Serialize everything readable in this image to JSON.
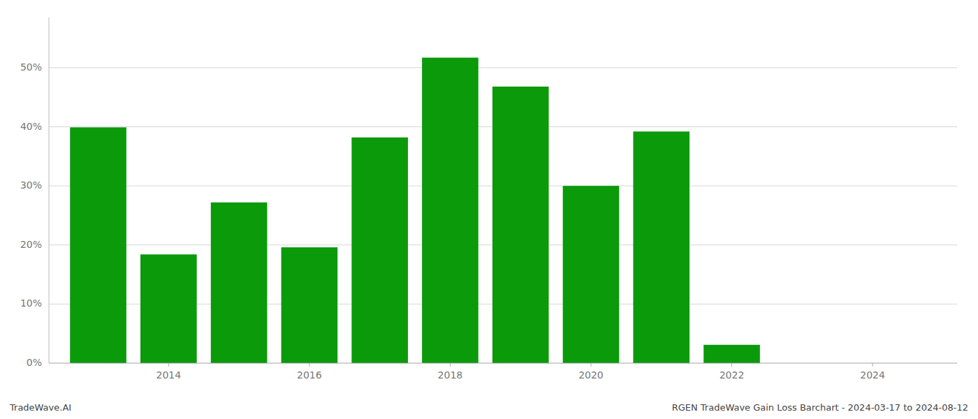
{
  "chart_data": {
    "type": "bar",
    "x": [
      2013,
      2014,
      2015,
      2016,
      2017,
      2018,
      2019,
      2020,
      2021,
      2022,
      2023
    ],
    "values": [
      0.399,
      0.184,
      0.272,
      0.196,
      0.382,
      0.517,
      0.468,
      0.3,
      0.392,
      0.031,
      0.0
    ],
    "color": "#0a9a0a",
    "xlim": [
      2012.3,
      2025.2
    ],
    "xticks": [
      2014,
      2016,
      2018,
      2020,
      2022,
      2024
    ],
    "ylim": [
      0,
      0.585
    ],
    "yticks": [
      {
        "value": 0.0,
        "label": "0%"
      },
      {
        "value": 0.1,
        "label": "10%"
      },
      {
        "value": 0.2,
        "label": "20%"
      },
      {
        "value": 0.3,
        "label": "30%"
      },
      {
        "value": 0.4,
        "label": "40%"
      },
      {
        "value": 0.5,
        "label": "50%"
      }
    ],
    "grid": true,
    "annotations": [
      "TradeWave.AI",
      "RGEN TradeWave Gain Loss Barchart - 2024-03-17 to 2024-08-12"
    ]
  }
}
